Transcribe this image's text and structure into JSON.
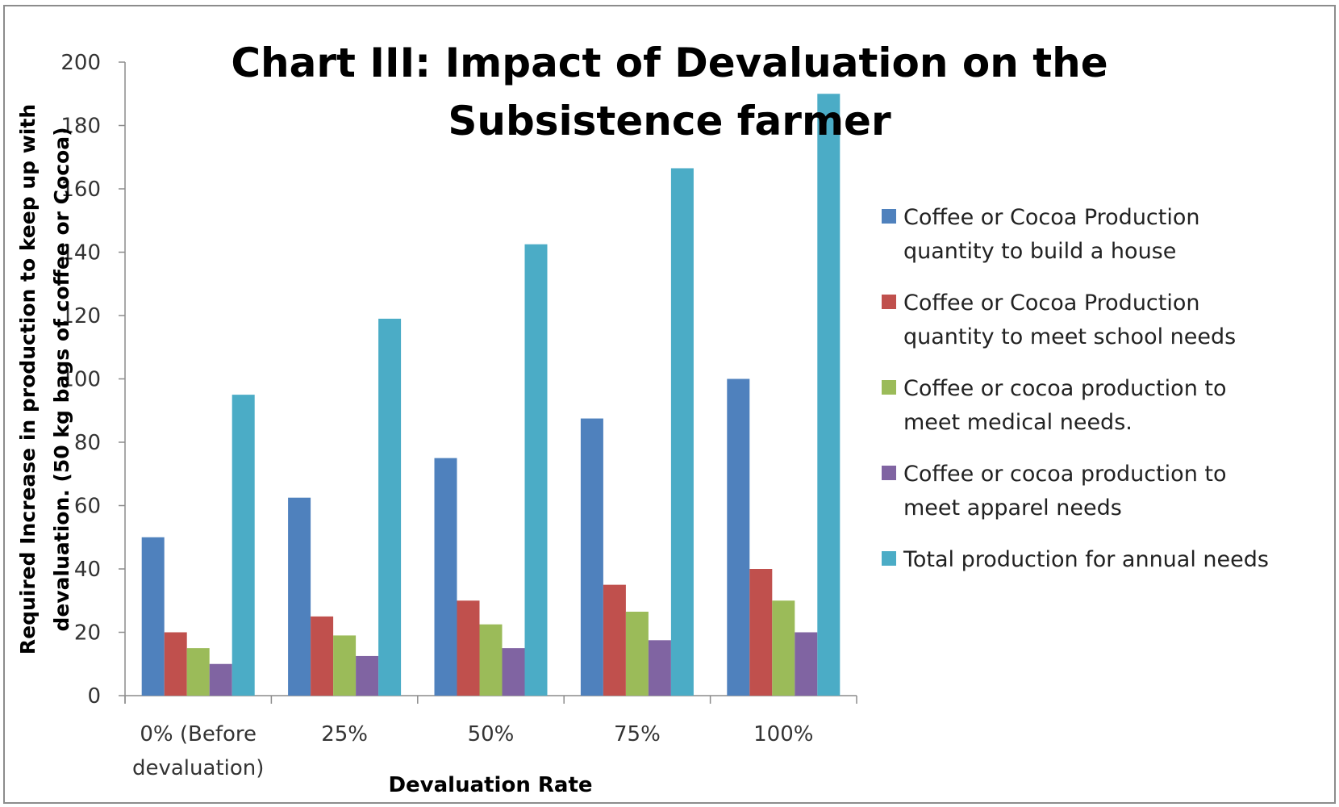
{
  "chart_data": {
    "type": "bar",
    "title": [
      "Chart III: Impact of Devaluation on the",
      "Subsistence farmer"
    ],
    "xlabel": "Devaluation Rate",
    "ylabel": [
      "Required Increase in production to keep up with",
      "devaluation. (50 kg bags of coffee or Cocoa)"
    ],
    "categories": [
      [
        "0% (Before",
        "devaluation)"
      ],
      [
        "25%"
      ],
      [
        "50%"
      ],
      [
        "75%"
      ],
      [
        "100%"
      ]
    ],
    "ylim": [
      0,
      200
    ],
    "yticks": [
      0,
      20,
      40,
      60,
      80,
      100,
      120,
      140,
      160,
      180,
      200
    ],
    "grid": false,
    "legend_position": "right",
    "series": [
      {
        "name": [
          "Coffee or Cocoa Production",
          "quantity to build a house"
        ],
        "color": "#4F81BD",
        "values": [
          50,
          62.5,
          75,
          87.5,
          100
        ]
      },
      {
        "name": [
          "Coffee or Cocoa Production",
          "quantity to meet school needs"
        ],
        "color": "#C0504D",
        "values": [
          20,
          25,
          30,
          35,
          40
        ]
      },
      {
        "name": [
          "Coffee or cocoa production to",
          "meet medical needs."
        ],
        "color": "#9BBB59",
        "values": [
          15,
          19,
          22.5,
          26.5,
          30
        ]
      },
      {
        "name": [
          "Coffee or cocoa production to",
          "meet apparel needs"
        ],
        "color": "#8064A2",
        "values": [
          10,
          12.5,
          15,
          17.5,
          20
        ]
      },
      {
        "name": [
          "Total production  for annual needs"
        ],
        "color": "#4BACC6",
        "values": [
          95,
          119,
          142.5,
          166.5,
          190
        ]
      }
    ]
  }
}
